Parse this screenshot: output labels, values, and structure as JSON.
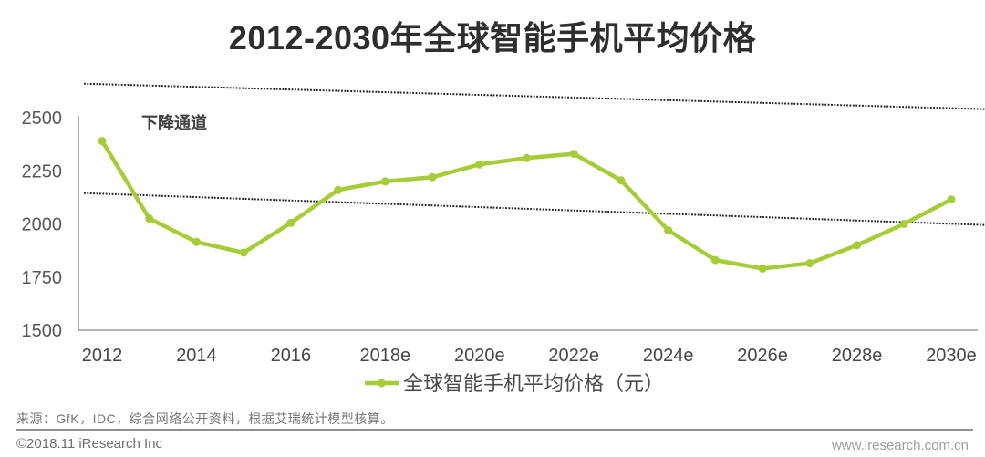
{
  "title": "2012-2030年全球智能手机平均价格",
  "chart_data": {
    "type": "line",
    "title": "2012-2030年全球智能手机平均价格",
    "categories": [
      "2012",
      "2013",
      "2014",
      "2015",
      "2016",
      "2017",
      "2018e",
      "2019e",
      "2020e",
      "2021e",
      "2022e",
      "2023e",
      "2024e",
      "2025e",
      "2026e",
      "2027e",
      "2028e",
      "2029e",
      "2030e"
    ],
    "series": [
      {
        "name": "全球智能手机平均价格（元）",
        "values": [
          2390,
          2025,
          1915,
          1865,
          2005,
          2160,
          2200,
          2220,
          2280,
          2310,
          2330,
          2205,
          1970,
          1830,
          1790,
          1815,
          1900,
          2000,
          2115
        ],
        "color": "#a7cc3a"
      }
    ],
    "xlabel": "",
    "ylabel": "",
    "ylim": [
      1500,
      2500
    ],
    "yticks": [
      1500,
      1750,
      2000,
      2250,
      2500
    ],
    "x_tick_labels": [
      "2012",
      "2014",
      "2016",
      "2018e",
      "2020e",
      "2022e",
      "2024e",
      "2026e",
      "2028e",
      "2030e"
    ],
    "x_tick_step": 2,
    "grid": false,
    "legend_position": "bottom-center",
    "annotations": {
      "channel_label": "下降通道",
      "upper_line": {
        "start_value": 2660,
        "end_value": 2540
      },
      "lower_line": {
        "start_value": 2145,
        "end_value": 1995
      },
      "line_style": "dotted",
      "line_color": "#1c1c1c"
    }
  },
  "legend": {
    "label": "全球智能手机平均价格（元）"
  },
  "footer": {
    "source": "来源：GfK，IDC，综合网络公开资料，根据艾瑞统计模型核算。",
    "copyright": "©2018.11 iResearch Inc",
    "website": "www.iresearch.com.cn"
  },
  "colors": {
    "accent_green": "#a7cc3a",
    "title_text": "#2e2e2e",
    "axis_line": "#9a9a9a",
    "tick_text": "#595959",
    "x_tick_text": "#474747",
    "channel_text": "#424242",
    "legend_text": "#4a4a4a",
    "footer_text": "#767676",
    "website_text": "#9aa0a5"
  }
}
